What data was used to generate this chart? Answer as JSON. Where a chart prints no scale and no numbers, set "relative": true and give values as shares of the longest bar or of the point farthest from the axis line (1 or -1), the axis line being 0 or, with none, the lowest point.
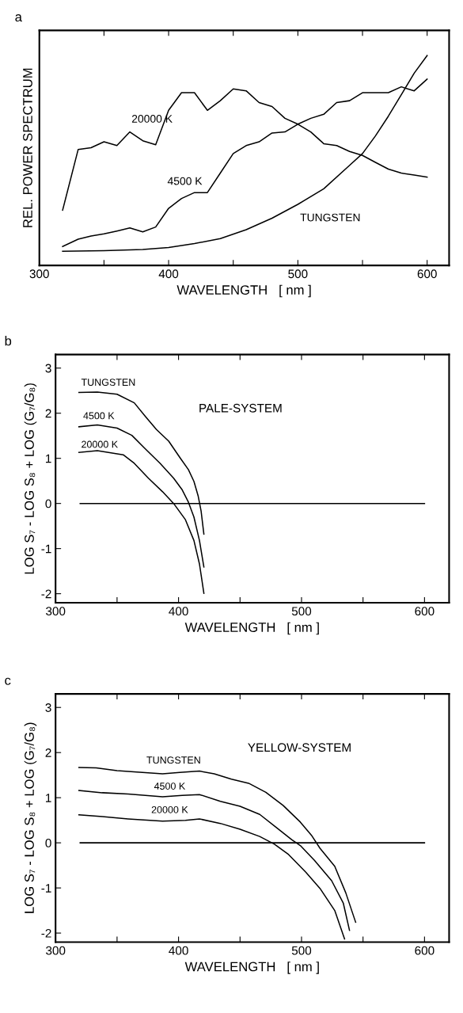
{
  "chart_data": [
    {
      "type": "line",
      "title": "a",
      "xlabel": "WAVELENGTH   [ nm ]",
      "ylabel": "REL. POWER SPECTRUM",
      "relative": true,
      "xlim": [
        300,
        617
      ],
      "xticks": [
        300,
        {
          "value": 350,
          "label": null
        },
        400,
        {
          "value": 450,
          "label": null
        },
        500,
        {
          "value": 550,
          "label": null
        },
        600
      ],
      "grid": false,
      "series": [
        {
          "name": "20000 K",
          "color": "#000000",
          "x": [
            318,
            330,
            340,
            350,
            360,
            370,
            380,
            390,
            400,
            410,
            420,
            430,
            440,
            450,
            460,
            470,
            480,
            490,
            500,
            510,
            520,
            530,
            540,
            550,
            560,
            570,
            580,
            590,
            600
          ],
          "values": [
            0.263,
            0.552,
            0.561,
            0.589,
            0.571,
            0.636,
            0.594,
            0.575,
            0.739,
            0.823,
            0.823,
            0.739,
            0.785,
            0.841,
            0.832,
            0.776,
            0.757,
            0.701,
            0.673,
            0.636,
            0.58,
            0.571,
            0.543,
            0.524,
            0.491,
            0.459,
            0.44,
            0.431,
            0.421
          ]
        },
        {
          "name": "4500 K",
          "color": "#000000",
          "x": [
            318,
            330,
            340,
            350,
            360,
            370,
            380,
            390,
            400,
            410,
            420,
            430,
            440,
            450,
            460,
            470,
            480,
            490,
            500,
            510,
            520,
            530,
            540,
            550,
            560,
            570,
            580,
            590,
            600
          ],
          "values": [
            0.09,
            0.125,
            0.14,
            0.15,
            0.164,
            0.179,
            0.16,
            0.183,
            0.272,
            0.319,
            0.347,
            0.347,
            0.44,
            0.533,
            0.571,
            0.589,
            0.631,
            0.636,
            0.673,
            0.701,
            0.72,
            0.776,
            0.785,
            0.823,
            0.823,
            0.823,
            0.851,
            0.832,
            0.888
          ]
        },
        {
          "name": "TUNGSTEN",
          "color": "#000000",
          "x": [
            318,
            350,
            380,
            400,
            420,
            440,
            460,
            480,
            500,
            520,
            540,
            550,
            560,
            570,
            580,
            590,
            600
          ],
          "values": [
            0.067,
            0.07,
            0.076,
            0.085,
            0.104,
            0.128,
            0.17,
            0.225,
            0.291,
            0.365,
            0.477,
            0.533,
            0.617,
            0.711,
            0.813,
            0.916,
            1.0
          ]
        }
      ]
    },
    {
      "type": "line",
      "title": "b",
      "xlabel": "WAVELENGTH   [ nm ]",
      "ylabel": "LOG S₇ - LOG S₈ + LOG (G₇/G₈)",
      "annotations": [
        "PALE-SYSTEM"
      ],
      "xlim": [
        300,
        620
      ],
      "xticks": [
        300,
        {
          "value": 350,
          "label": null
        },
        400,
        {
          "value": 450,
          "label": null
        },
        500,
        {
          "value": 550,
          "label": null
        },
        600
      ],
      "ylim": [
        -2.2,
        3.3
      ],
      "yticks": [
        -2,
        -1,
        0,
        1,
        2,
        3
      ],
      "grid": false,
      "series": [
        {
          "name": "TUNGSTEN",
          "color": "#000000",
          "x": [
            319,
            334,
            350,
            364,
            373,
            382,
            392,
            401,
            408,
            412.5,
            416,
            418.3,
            420.6
          ],
          "values": [
            2.46,
            2.47,
            2.42,
            2.23,
            1.93,
            1.64,
            1.38,
            1.02,
            0.75,
            0.49,
            0.16,
            -0.16,
            -0.68
          ]
        },
        {
          "name": "4500 K",
          "color": "#000000",
          "x": [
            319,
            334,
            350,
            362,
            373,
            385,
            396,
            403,
            408,
            412.5,
            417,
            420.6
          ],
          "values": [
            1.7,
            1.74,
            1.67,
            1.51,
            1.21,
            0.89,
            0.56,
            0.3,
            0.03,
            -0.3,
            -0.82,
            -1.41
          ]
        },
        {
          "name": "20000 K",
          "color": "#000000",
          "x": [
            319,
            334,
            355,
            364,
            375.5,
            387,
            396,
            405.6,
            412.5,
            417,
            420.6
          ],
          "values": [
            1.13,
            1.17,
            1.08,
            0.89,
            0.56,
            0.26,
            0,
            -0.36,
            -0.82,
            -1.34,
            -1.99
          ]
        },
        {
          "color": "#000000",
          "x": [
            320,
            600
          ],
          "values": [
            0,
            0
          ]
        }
      ]
    },
    {
      "type": "line",
      "title": "c",
      "xlabel": "WAVELENGTH   [ nm ]",
      "ylabel": "LOG S₇ - LOG S₈ + LOG (G₇/G₈)",
      "annotations": [
        "YELLOW-SYSTEM"
      ],
      "xlim": [
        300,
        620
      ],
      "xticks": [
        300,
        {
          "value": 350,
          "label": null
        },
        400,
        {
          "value": 450,
          "label": null
        },
        500,
        {
          "value": 550,
          "label": null
        },
        600
      ],
      "ylim": [
        -2.2,
        3.3
      ],
      "yticks": [
        -2,
        -1,
        0,
        1,
        2,
        3
      ],
      "grid": false,
      "series": [
        {
          "name": "TUNGSTEN",
          "color": "#000000",
          "x": [
            319,
            333,
            350,
            366,
            387,
            401,
            417,
            429,
            443,
            457,
            471,
            485,
            499,
            508,
            515,
            527,
            536,
            544
          ],
          "values": [
            1.67,
            1.66,
            1.6,
            1.57,
            1.53,
            1.56,
            1.59,
            1.53,
            1.41,
            1.32,
            1.12,
            0.83,
            0.46,
            0.17,
            -0.12,
            -0.52,
            -1.11,
            -1.76
          ]
        },
        {
          "name": "4500 K",
          "color": "#000000",
          "x": [
            319,
            338,
            359,
            387,
            403,
            417,
            434,
            450,
            466,
            480,
            492,
            499,
            510.5,
            524.5,
            534,
            539
          ],
          "values": [
            1.16,
            1.11,
            1.08,
            1.02,
            1.05,
            1.07,
            0.92,
            0.81,
            0.63,
            0.33,
            0.07,
            -0.06,
            -0.39,
            -0.84,
            -1.34,
            -1.94
          ]
        },
        {
          "name": "20000 K",
          "color": "#000000",
          "x": [
            319,
            338,
            359,
            387,
            405.6,
            417,
            434,
            450,
            466,
            478,
            489.5,
            503.5,
            515,
            527,
            535
          ],
          "values": [
            0.62,
            0.58,
            0.53,
            0.48,
            0.5,
            0.53,
            0.43,
            0.3,
            0.14,
            -0.03,
            -0.26,
            -0.65,
            -1.01,
            -1.5,
            -2.13
          ]
        },
        {
          "color": "#000000",
          "x": [
            320,
            600
          ],
          "values": [
            0,
            0
          ]
        }
      ]
    }
  ]
}
